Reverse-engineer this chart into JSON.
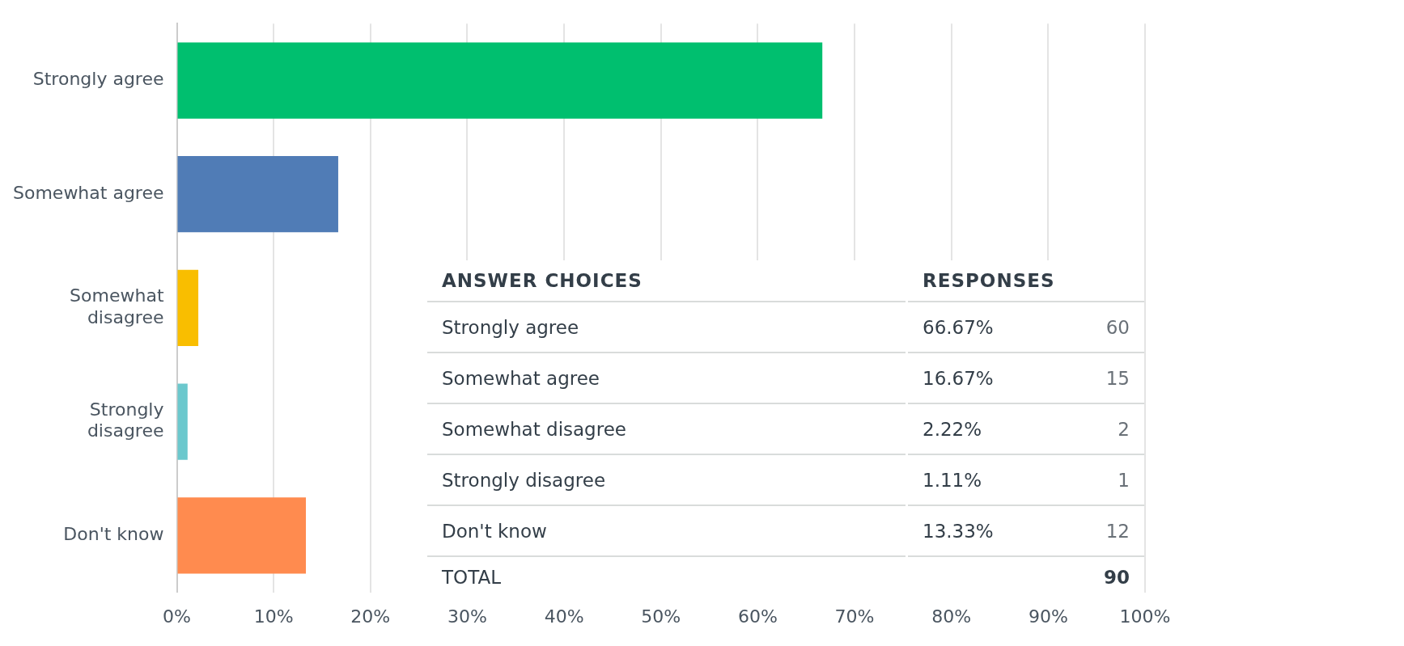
{
  "chart_data": {
    "type": "bar",
    "orientation": "horizontal",
    "categories": [
      "Strongly agree",
      "Somewhat agree",
      "Somewhat disagree",
      "Strongly disagree",
      "Don't know"
    ],
    "values": [
      66.67,
      16.67,
      2.22,
      1.11,
      13.33
    ],
    "colors": [
      "#00bf6f",
      "#507cb6",
      "#f9be00",
      "#6bc8cd",
      "#ff8b4f"
    ],
    "xlim": [
      0,
      100
    ],
    "xticks": [
      {
        "value": 0,
        "label": "0%"
      },
      {
        "value": 10,
        "label": "10%"
      },
      {
        "value": 20,
        "label": "20%"
      },
      {
        "value": 30,
        "label": "30%"
      },
      {
        "value": 40,
        "label": "40%"
      },
      {
        "value": 50,
        "label": "50%"
      },
      {
        "value": 60,
        "label": "60%"
      },
      {
        "value": 70,
        "label": "70%"
      },
      {
        "value": 80,
        "label": "80%"
      },
      {
        "value": 90,
        "label": "90%"
      },
      {
        "value": 100,
        "label": "100%"
      }
    ],
    "grid": "x",
    "annotations": [
      "ANSWER CHOICES",
      "RESPONSES",
      "66.67%",
      "16.67%",
      "2.22%",
      "1.11%",
      "13.33%",
      "60",
      "15",
      "2",
      "1",
      "12",
      "TOTAL",
      "90"
    ]
  }
}
